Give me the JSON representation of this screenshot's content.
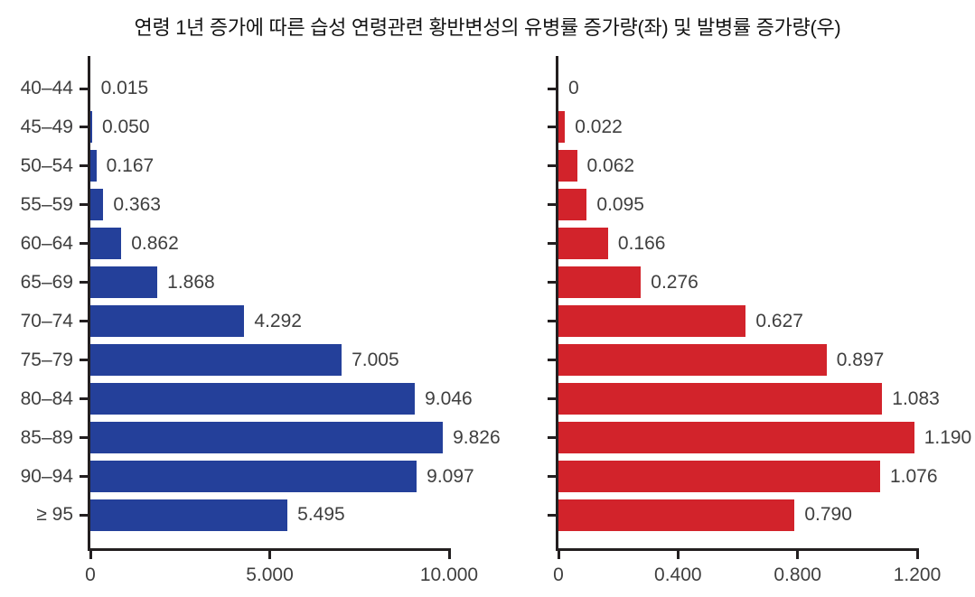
{
  "title": "연령 1년 증가에 따른 습성 연령관련 황반변성의 유병률 증가량(좌) 및 발병률 증가량(우)",
  "colors": {
    "axis": "#231f20",
    "text": "#3f3f3f",
    "title": "#141414",
    "left_bar": "#24409a",
    "right_bar": "#d2232b"
  },
  "chart_data": [
    {
      "type": "bar",
      "orientation": "horizontal",
      "side": "left",
      "categories": [
        "40–44",
        "45–49",
        "50–54",
        "55–59",
        "60–64",
        "65–69",
        "70–74",
        "75–79",
        "80–84",
        "85–89",
        "90–94",
        "≥ 95"
      ],
      "values": [
        0.015,
        0.05,
        0.167,
        0.363,
        0.862,
        1.868,
        4.292,
        7.005,
        9.046,
        9.826,
        9.097,
        5.495
      ],
      "value_labels": [
        "0.015",
        "0.050",
        "0.167",
        "0.363",
        "0.862",
        "1.868",
        "4.292",
        "7.005",
        "9.046",
        "9.826",
        "9.097",
        "5.495"
      ],
      "bar_color": "#24409a",
      "xlim": [
        0,
        10
      ],
      "ticks": [
        {
          "value": 0,
          "label": "0"
        },
        {
          "value": 5,
          "label": "5.000"
        },
        {
          "value": 10,
          "label": "10.000"
        }
      ],
      "category_labels_shown": true,
      "grid": false,
      "legend": false
    },
    {
      "type": "bar",
      "orientation": "horizontal",
      "side": "right",
      "categories": [
        "40–44",
        "45–49",
        "50–54",
        "55–59",
        "60–64",
        "65–69",
        "70–74",
        "75–79",
        "80–84",
        "85–89",
        "90–94",
        "≥ 95"
      ],
      "values": [
        0,
        0.022,
        0.062,
        0.095,
        0.166,
        0.276,
        0.627,
        0.897,
        1.083,
        1.19,
        1.076,
        0.79
      ],
      "value_labels": [
        "0",
        "0.022",
        "0.062",
        "0.095",
        "0.166",
        "0.276",
        "0.627",
        "0.897",
        "1.083",
        "1.190",
        "1.076",
        "0.790"
      ],
      "bar_color": "#d2232b",
      "xlim": [
        0,
        1.2
      ],
      "ticks": [
        {
          "value": 0,
          "label": "0"
        },
        {
          "value": 0.4,
          "label": "0.400"
        },
        {
          "value": 0.8,
          "label": "0.800"
        },
        {
          "value": 1.2,
          "label": "1.200"
        }
      ],
      "category_labels_shown": false,
      "grid": false,
      "legend": false
    }
  ]
}
